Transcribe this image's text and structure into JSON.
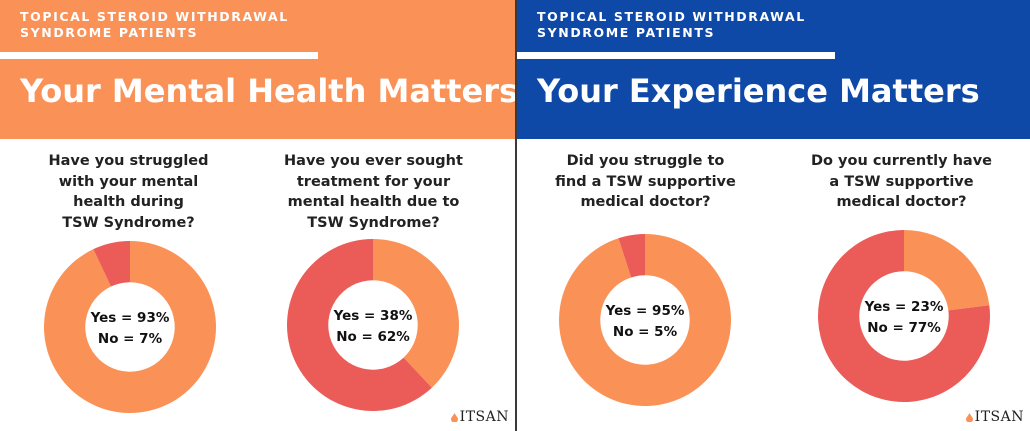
{
  "colors": {
    "orange": "#FA9257",
    "coral": "#EB5B58",
    "navy": "#0E49A8",
    "header_orange": "#FA9257"
  },
  "panels": [
    {
      "kicker": [
        "TOPICAL STEROID WITHDRAWAL",
        "SYNDROME PATIENTS"
      ],
      "title": "Your Mental Health Matters",
      "logo": "ITSAN",
      "icon": "logo-drop-icon"
    },
    {
      "kicker": [
        "TOPICAL STEROID WITHDRAWAL",
        "SYNDROME PATIENTS"
      ],
      "title": "Your Experience Matters",
      "logo": "ITSAN",
      "icon": "logo-drop-icon"
    }
  ],
  "chart_data": [
    {
      "type": "pie",
      "title": [
        "Have you struggled",
        "with your mental",
        "health during",
        "TSW Syndrome?"
      ],
      "categories": [
        "Yes",
        "No"
      ],
      "values": [
        93,
        7
      ],
      "labels": [
        "Yes = 93%",
        "No = 7%"
      ],
      "colors": [
        "#FA9257",
        "#EB5B58"
      ]
    },
    {
      "type": "pie",
      "title": [
        "Have you ever sought",
        "treatment for your",
        "mental health due to",
        "TSW Syndrome?"
      ],
      "categories": [
        "Yes",
        "No"
      ],
      "values": [
        38,
        62
      ],
      "labels": [
        "Yes = 38%",
        "No = 62%"
      ],
      "colors": [
        "#FA9257",
        "#EB5B58"
      ]
    },
    {
      "type": "pie",
      "title": [
        "Did you struggle to",
        "find a TSW supportive",
        "medical doctor?"
      ],
      "categories": [
        "Yes",
        "No"
      ],
      "values": [
        95,
        5
      ],
      "labels": [
        "Yes = 95%",
        "No = 5%"
      ],
      "colors": [
        "#FA9257",
        "#EB5B58"
      ]
    },
    {
      "type": "pie",
      "title": [
        "Do you currently have",
        "a TSW supportive",
        "medical doctor?"
      ],
      "categories": [
        "Yes",
        "No"
      ],
      "values": [
        23,
        77
      ],
      "labels": [
        "Yes = 23%",
        "No = 77%"
      ],
      "colors": [
        "#FA9257",
        "#EB5B58"
      ]
    }
  ]
}
